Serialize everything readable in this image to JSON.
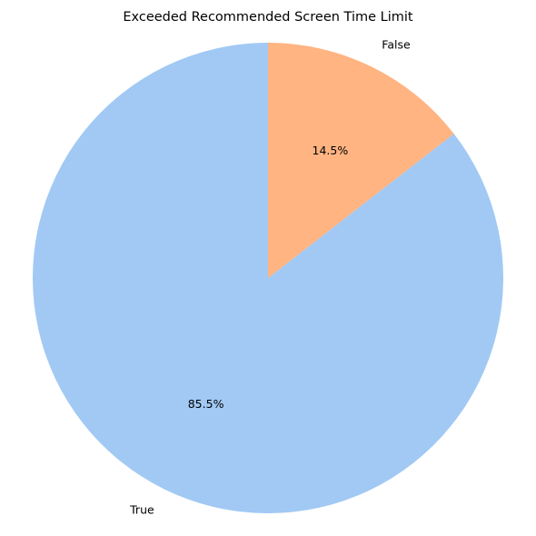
{
  "chart_data": {
    "type": "pie",
    "title": "Exceeded Recommended Screen Time Limit",
    "labels": [
      "True",
      "False"
    ],
    "values": [
      85.5,
      14.5
    ],
    "pct_labels": [
      "85.5%",
      "14.5%"
    ],
    "colors": [
      "#a1c9f4",
      "#ffb482"
    ],
    "start_angle": 90,
    "direction": "counterclockwise"
  }
}
